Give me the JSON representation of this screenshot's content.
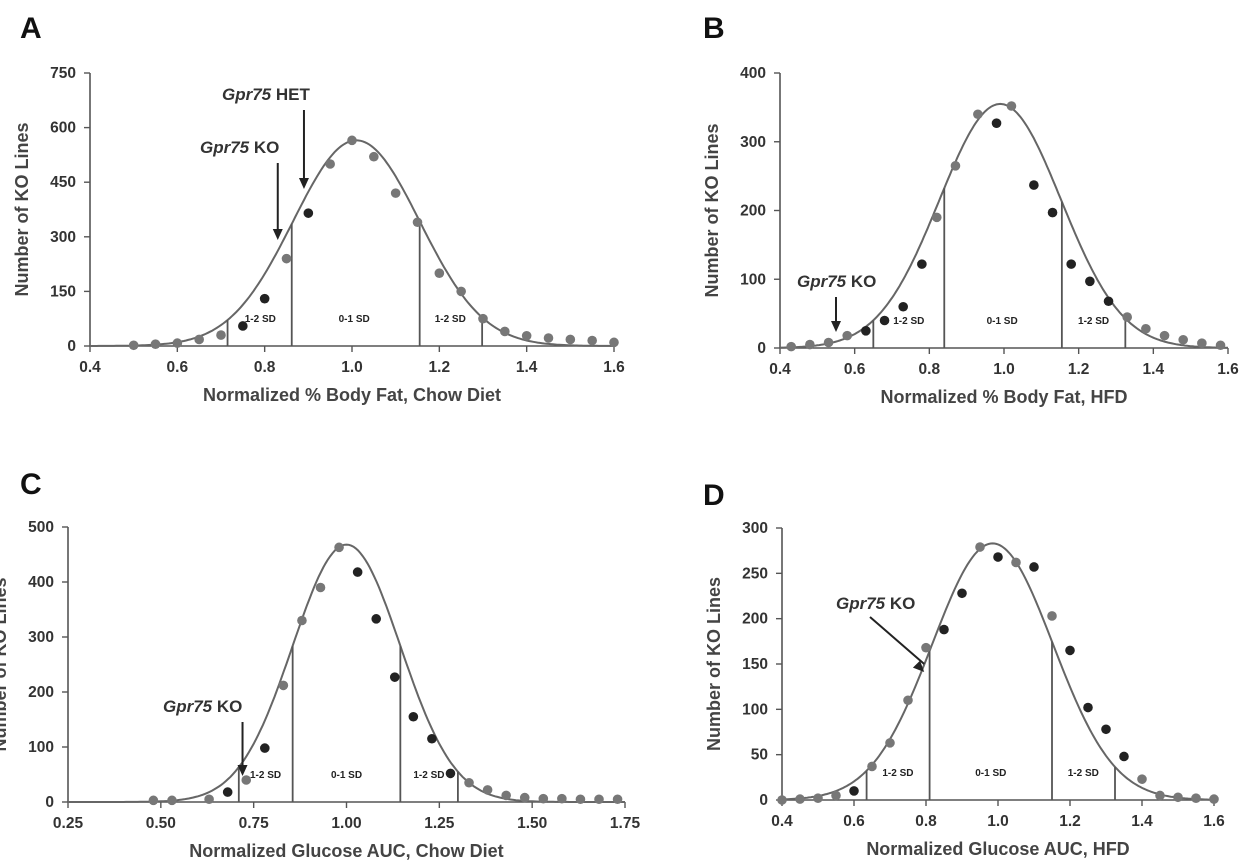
{
  "chart_data": [
    {
      "panel": "A",
      "type": "scatter",
      "xlabel": "Normalized % Body Fat, Chow Diet",
      "ylabel": "Number of KO Lines",
      "xlim": [
        0.4,
        1.6
      ],
      "ylim": [
        0,
        750
      ],
      "xticks": [
        "0.4",
        "0.6",
        "0.8",
        "1.0",
        "1.2",
        "1.4",
        "1.6"
      ],
      "yticks": [
        "0",
        "150",
        "300",
        "450",
        "600",
        "750"
      ],
      "grid": false,
      "fit_curve": {
        "type": "gaussian",
        "mean": 1.01,
        "sd": 0.145,
        "peak": 565
      },
      "sd_lines": [
        0.715,
        0.862,
        1.155,
        1.298
      ],
      "band_labels": [
        {
          "text": "1-2 SD",
          "x": 0.79
        },
        {
          "text": "0-1 SD",
          "x": 1.005
        },
        {
          "text": "1-2 SD",
          "x": 1.225
        }
      ],
      "annotations": [
        {
          "italic": "Gpr75",
          "text": " KO",
          "target_x": 0.83
        },
        {
          "italic": "Gpr75",
          "text": " HET",
          "target_x": 0.89
        }
      ],
      "series": [
        {
          "color": "#777777",
          "x": [
            0.5,
            0.55,
            0.6,
            0.65,
            0.7,
            0.85,
            0.95,
            1.0,
            1.05,
            1.1,
            1.15,
            1.2,
            1.25,
            1.3,
            1.35,
            1.4,
            1.45,
            1.5,
            1.55,
            1.6
          ],
          "y": [
            2,
            5,
            8,
            18,
            30,
            240,
            500,
            565,
            520,
            420,
            340,
            200,
            150,
            75,
            40,
            28,
            22,
            18,
            15,
            10
          ]
        },
        {
          "color": "#222222",
          "x": [
            0.75,
            0.8,
            0.9
          ],
          "y": [
            55,
            130,
            365
          ]
        }
      ]
    },
    {
      "panel": "B",
      "type": "scatter",
      "xlabel": "Normalized % Body Fat, HFD",
      "ylabel": "Number of KO Lines",
      "xlim": [
        0.4,
        1.6
      ],
      "ylim": [
        0,
        400
      ],
      "xticks": [
        "0.4",
        "0.6",
        "0.8",
        "1.0",
        "1.2",
        "1.4",
        "1.6"
      ],
      "yticks": [
        "0",
        "100",
        "200",
        "300",
        "400"
      ],
      "grid": false,
      "fit_curve": {
        "type": "gaussian",
        "mean": 0.99,
        "sd": 0.163,
        "peak": 355
      },
      "sd_lines": [
        0.65,
        0.84,
        1.155,
        1.325
      ],
      "band_labels": [
        {
          "text": "1-2 SD",
          "x": 0.745
        },
        {
          "text": "0-1 SD",
          "x": 0.995
        },
        {
          "text": "1-2 SD",
          "x": 1.24
        }
      ],
      "annotations": [
        {
          "italic": "Gpr75",
          "text": " KO",
          "target_x": 0.55
        }
      ],
      "series": [
        {
          "color": "#777777",
          "x": [
            0.43,
            0.48,
            0.53,
            0.58,
            0.82,
            0.87,
            0.93,
            1.02,
            1.33,
            1.38,
            1.43,
            1.48,
            1.53,
            1.58
          ],
          "y": [
            2,
            5,
            8,
            18,
            190,
            265,
            340,
            352,
            45,
            28,
            18,
            12,
            7,
            4
          ]
        },
        {
          "color": "#222222",
          "x": [
            0.63,
            0.68,
            0.73,
            0.78,
            0.98,
            1.08,
            1.13,
            1.18,
            1.23,
            1.28
          ],
          "y": [
            25,
            40,
            60,
            122,
            327,
            237,
            197,
            122,
            97,
            68
          ]
        }
      ]
    },
    {
      "panel": "C",
      "type": "scatter",
      "xlabel": "Normalized Glucose AUC, Chow Diet",
      "ylabel": "Number of KO Lines",
      "xlim": [
        0.25,
        1.75
      ],
      "ylim": [
        0,
        500
      ],
      "xticks": [
        "0.25",
        "0.50",
        "0.75",
        "1.00",
        "1.25",
        "1.50",
        "1.75"
      ],
      "yticks": [
        "0",
        "100",
        "200",
        "300",
        "400",
        "500"
      ],
      "grid": false,
      "fit_curve": {
        "type": "gaussian",
        "mean": 1.0,
        "sd": 0.145,
        "peak": 468
      },
      "sd_lines": [
        0.71,
        0.855,
        1.145,
        1.3
      ],
      "band_labels": [
        {
          "text": "1-2 SD",
          "x": 0.782
        },
        {
          "text": "0-1 SD",
          "x": 1.0
        },
        {
          "text": "1-2 SD",
          "x": 1.222
        }
      ],
      "annotations": [
        {
          "italic": "Gpr75",
          "text": " KO",
          "target_x": 0.72
        }
      ],
      "series": [
        {
          "color": "#777777",
          "x": [
            0.48,
            0.53,
            0.63,
            0.73,
            0.83,
            0.88,
            0.93,
            0.98,
            1.33,
            1.38,
            1.43,
            1.48,
            1.53,
            1.58,
            1.63,
            1.68,
            1.73
          ],
          "y": [
            3,
            3,
            5,
            40,
            212,
            330,
            390,
            463,
            35,
            22,
            12,
            8,
            6,
            6,
            5,
            5,
            5
          ]
        },
        {
          "color": "#222222",
          "x": [
            0.68,
            0.78,
            1.03,
            1.08,
            1.13,
            1.18,
            1.23,
            1.28
          ],
          "y": [
            18,
            98,
            418,
            333,
            227,
            155,
            115,
            52
          ]
        }
      ]
    },
    {
      "panel": "D",
      "type": "scatter",
      "xlabel": "Normalized Glucose AUC, HFD",
      "ylabel": "Number of KO Lines",
      "xlim": [
        0.4,
        1.6
      ],
      "ylim": [
        0,
        300
      ],
      "xticks": [
        "0.4",
        "0.6",
        "0.8",
        "1.0",
        "1.2",
        "1.4",
        "1.6"
      ],
      "yticks": [
        "0",
        "50",
        "100",
        "150",
        "200",
        "250",
        "300"
      ],
      "grid": false,
      "fit_curve": {
        "type": "gaussian",
        "mean": 0.985,
        "sd": 0.168,
        "peak": 283
      },
      "sd_lines": [
        0.635,
        0.81,
        1.15,
        1.325
      ],
      "band_labels": [
        {
          "text": "1-2 SD",
          "x": 0.722
        },
        {
          "text": "0-1 SD",
          "x": 0.98
        },
        {
          "text": "1-2 SD",
          "x": 1.237
        }
      ],
      "annotations": [
        {
          "italic": "Gpr75",
          "text": " KO",
          "target_x": 0.795
        }
      ],
      "series": [
        {
          "color": "#777777",
          "x": [
            0.4,
            0.45,
            0.5,
            0.55,
            0.65,
            0.7,
            0.75,
            0.8,
            0.95,
            1.05,
            1.15,
            1.4,
            1.45,
            1.5,
            1.55,
            1.6
          ],
          "y": [
            0,
            1,
            2,
            5,
            37,
            63,
            110,
            168,
            279,
            262,
            203,
            23,
            5,
            3,
            2,
            1
          ]
        },
        {
          "color": "#222222",
          "x": [
            0.6,
            0.85,
            0.9,
            1.0,
            1.1,
            1.2,
            1.25,
            1.3,
            1.35
          ],
          "y": [
            10,
            188,
            228,
            268,
            257,
            165,
            102,
            78,
            48
          ]
        }
      ]
    }
  ],
  "style": {
    "curve_color": "#666666",
    "axis_color": "#555555"
  }
}
